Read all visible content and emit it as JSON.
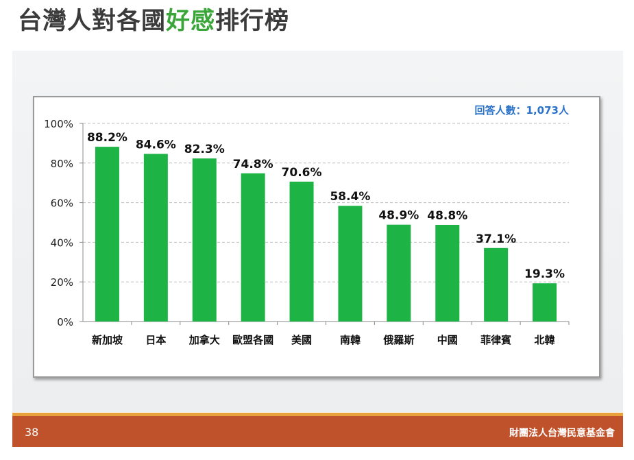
{
  "title": {
    "part1": "台灣人對各國",
    "highlight": "好感",
    "part2": "排行榜"
  },
  "respondents_label": "回答人數：1,073人",
  "footer": {
    "page_number": "38",
    "org": "財團法人台灣民意基金會"
  },
  "colors": {
    "bar": "#1db345",
    "title_highlight": "#3aa63a",
    "footer": "#c0522b",
    "footer_stripe": "#e8a13a",
    "respondents": "#2a72c9"
  },
  "chart_data": {
    "type": "bar",
    "title": "",
    "xlabel": "",
    "ylabel": "",
    "ylim": [
      0,
      100
    ],
    "yticks": [
      "0%",
      "20%",
      "40%",
      "60%",
      "80%",
      "100%"
    ],
    "ytick_values": [
      0,
      20,
      40,
      60,
      80,
      100
    ],
    "grid": true,
    "categories": [
      "新加坡",
      "日本",
      "加拿大",
      "歐盟各國",
      "美國",
      "南韓",
      "俄羅斯",
      "中國",
      "菲律賓",
      "北韓"
    ],
    "values": [
      88.2,
      84.6,
      82.3,
      74.8,
      70.6,
      58.4,
      48.9,
      48.8,
      37.1,
      19.3
    ],
    "data_labels": [
      "88.2%",
      "84.6%",
      "82.3%",
      "74.8%",
      "70.6%",
      "58.4%",
      "48.9%",
      "48.8%",
      "37.1%",
      "19.3%"
    ]
  }
}
